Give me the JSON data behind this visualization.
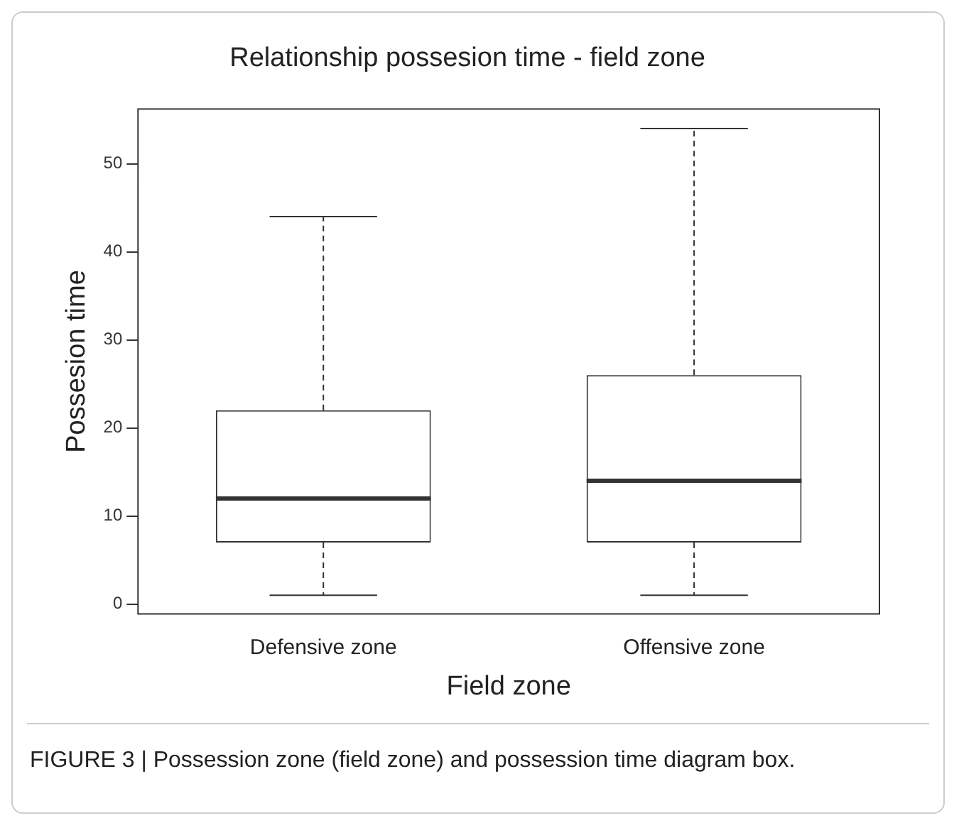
{
  "chart_data": {
    "type": "box",
    "title": "Relationship possesion time - field zone",
    "xlabel": "Field zone",
    "ylabel": "Possesion time",
    "categories": [
      "Defensive zone",
      "Offensive zone"
    ],
    "boxes": [
      {
        "low": 1,
        "q1": 7,
        "median": 12,
        "q3": 22,
        "high": 44
      },
      {
        "low": 1,
        "q1": 7,
        "median": 14,
        "q3": 26,
        "high": 54
      }
    ],
    "ylim": [
      -1.1,
      56.2
    ],
    "yticks": [
      0,
      10,
      20,
      30,
      40,
      50
    ],
    "grid": false,
    "legend": false,
    "annotations": [
      "FIGURE 3 | Possession zone (field zone) and possession time diagram box."
    ]
  }
}
